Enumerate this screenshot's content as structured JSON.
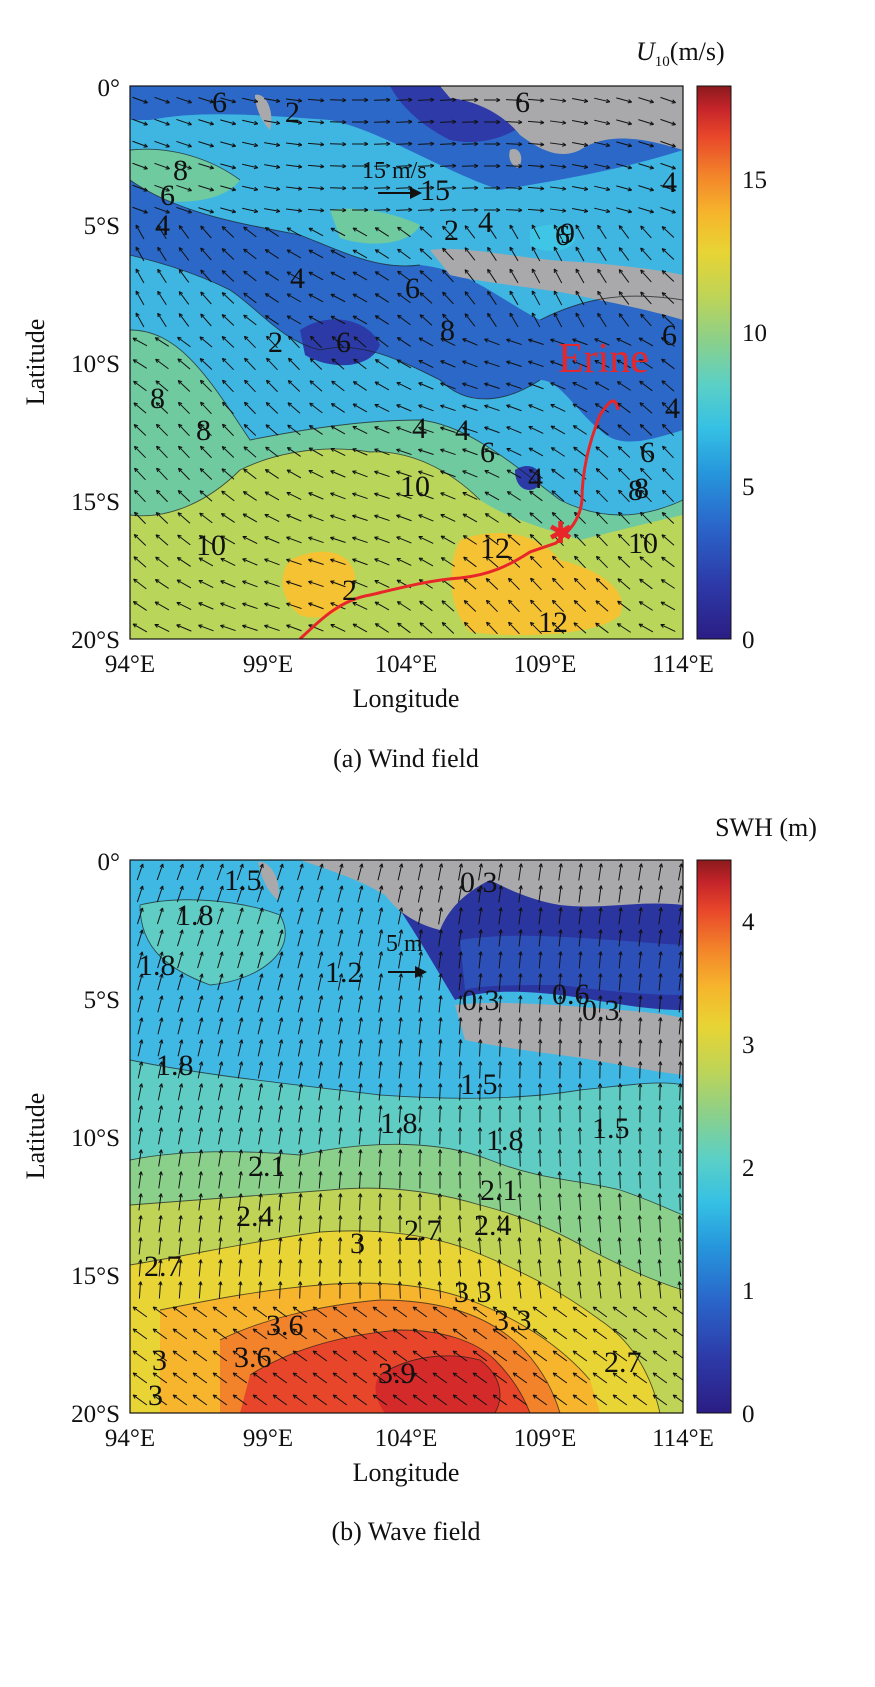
{
  "panels": [
    {
      "id": "wind",
      "caption": "(a) Wind field",
      "xlabel": "Longitude",
      "ylabel": "Latitude",
      "x_ticks": [
        "94°E",
        "99°E",
        "104°E",
        "109°E",
        "114°E"
      ],
      "y_ticks": [
        "0°",
        "5°S",
        "10°S",
        "15°S",
        "20°S"
      ],
      "colorbar": {
        "title_symbol": "U",
        "title_subscript": "10",
        "title_unit": "(m/s)",
        "ticks": [
          "0",
          "5",
          "10",
          "15"
        ],
        "range": [
          0,
          18
        ]
      },
      "scale_arrow_label": "15 m/s",
      "track_label": "Erine",
      "contour_labels": [
        "6",
        "2",
        "6",
        "4",
        "8",
        "6",
        "4",
        "15",
        "2",
        "4",
        "6",
        "8",
        "4",
        "6",
        "2",
        "6",
        "9",
        "4",
        "8",
        "8",
        "4",
        "6",
        "4",
        "6",
        "8",
        "10",
        "10",
        "12",
        "2",
        "12",
        "10",
        "8",
        "6",
        "4"
      ]
    },
    {
      "id": "wave",
      "caption": "(b) Wave field",
      "xlabel": "Longitude",
      "ylabel": "Latitude",
      "x_ticks": [
        "94°E",
        "99°E",
        "104°E",
        "109°E",
        "114°E"
      ],
      "y_ticks": [
        "0°",
        "5°S",
        "10°S",
        "15°S",
        "20°S"
      ],
      "colorbar": {
        "title": "SWH (m)",
        "ticks": [
          "0",
          "1",
          "2",
          "3",
          "4"
        ],
        "range": [
          0,
          4.5
        ]
      },
      "scale_arrow_label": "5 m",
      "contour_labels": [
        "1.5",
        "1.8",
        "1.8",
        "1.2",
        "0.3",
        "0.3",
        "0.6",
        "0.3",
        "1.8",
        "1.5",
        "1.8",
        "1.8",
        "1.5",
        "2.1",
        "2.4",
        "2.1",
        "2.7",
        "2.7",
        "2.4",
        "3",
        "3.3",
        "3.6",
        "3.3",
        "3.6",
        "3.9",
        "2.7",
        "3",
        "3"
      ]
    }
  ],
  "colors": {
    "land": "#a9a9ab",
    "track": "#e8262a",
    "jet": [
      "#2b1d84",
      "#2d3aa8",
      "#2a64c9",
      "#2696dc",
      "#35c0e4",
      "#5bd0c6",
      "#8bd08a",
      "#bfd456",
      "#e8d434",
      "#f6b52c",
      "#f3832a",
      "#e8462a",
      "#c4242a",
      "#8b1a1c"
    ]
  }
}
